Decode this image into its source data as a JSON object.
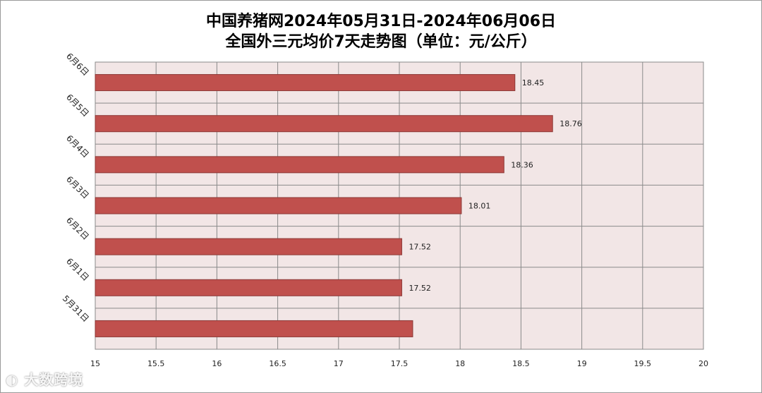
{
  "chart_data": {
    "type": "bar",
    "orientation": "horizontal",
    "title": "中国养猪网2024年05月31日-2024年06月06日",
    "subtitle": "全国外三元均价7天走势图（单位：元/公斤）",
    "categories": [
      "6月6日",
      "6月5日",
      "6月4日",
      "6月3日",
      "6月2日",
      "6月1日",
      "5月31日"
    ],
    "values": [
      18.45,
      18.76,
      18.36,
      18.01,
      17.52,
      17.52,
      17.61
    ],
    "data_labels": [
      "18.45",
      "18.76",
      "18.36",
      "18.01",
      "17.52",
      "17.52",
      ""
    ],
    "xlim": [
      15,
      20
    ],
    "x_ticks": [
      "15",
      "15.5",
      "16",
      "16.5",
      "17",
      "17.5",
      "18",
      "18.5",
      "19",
      "19.5",
      "20"
    ],
    "grid": true,
    "legend": "none",
    "colors": {
      "bar_fill": "#c0504d",
      "bar_stroke": "#8c3836",
      "plot_background": "#f2e6e6",
      "grid": "#8a8a8a"
    }
  },
  "watermark": {
    "text": "大数跨境",
    "icon": "ebridge-logo-icon"
  }
}
